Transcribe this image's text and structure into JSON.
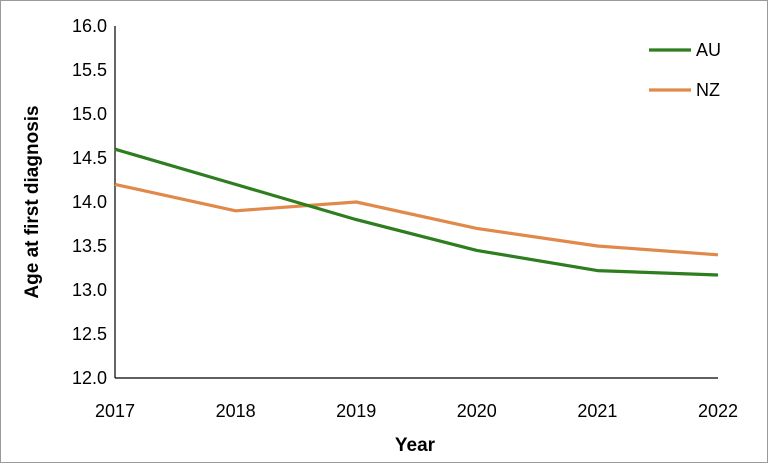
{
  "chart_data": {
    "type": "line",
    "title": "",
    "xlabel": "Year",
    "ylabel": "Age at first diagnosis",
    "x": [
      "2017",
      "2018",
      "2019",
      "2020",
      "2021",
      "2022"
    ],
    "ylim": [
      12.0,
      16.0
    ],
    "yticks": [
      "12.0",
      "12.5",
      "13.0",
      "13.5",
      "14.0",
      "14.5",
      "15.0",
      "15.5",
      "16.0"
    ],
    "grid": false,
    "legend_position": "top-right",
    "series": [
      {
        "name": "AU",
        "color": "#2e7d1f",
        "values": [
          14.6,
          14.2,
          13.8,
          13.45,
          13.22,
          13.17
        ]
      },
      {
        "name": "NZ",
        "color": "#e0894a",
        "values": [
          14.2,
          13.9,
          14.0,
          13.7,
          13.5,
          13.4
        ]
      }
    ]
  }
}
